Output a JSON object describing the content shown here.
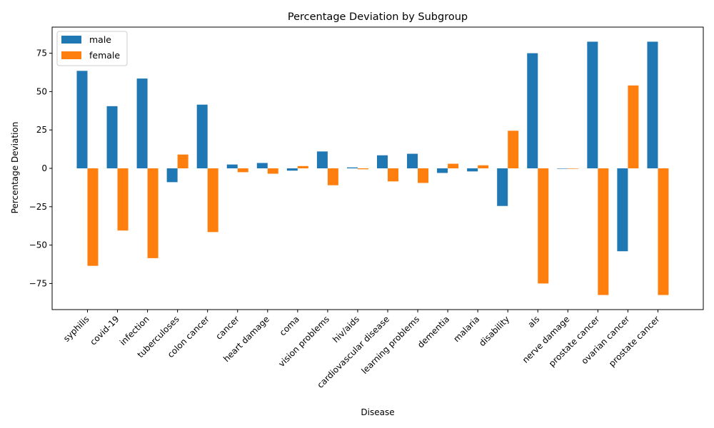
{
  "chart_data": {
    "type": "bar",
    "title": "Percentage Deviation by Subgroup",
    "xlabel": "Disease",
    "ylabel": "Percentage Deviation",
    "ylim": [
      -92,
      92
    ],
    "yticks": [
      -75,
      -50,
      -25,
      0,
      25,
      50,
      75
    ],
    "grid": false,
    "legend_position": "top-left",
    "categories": [
      "syphilis",
      "covid-19",
      "infection",
      "tuberculoses",
      "colon cancer",
      "cancer",
      "heart damage",
      "coma",
      "vision problems",
      "hiv/aids",
      "cardiovascular disease",
      "learning problems",
      "dementia",
      "malaria",
      "disability",
      "als",
      "nerve damage",
      "prostate cancer",
      "ovarian cancer",
      "prostate cancer"
    ],
    "series": [
      {
        "name": "male",
        "color": "#1f77b4",
        "values": [
          63.5,
          40.5,
          58.5,
          -9,
          41.5,
          2.5,
          3.5,
          -1.5,
          11,
          0.6,
          8.5,
          9.5,
          -3,
          -2,
          -24.5,
          75,
          0,
          82.5,
          -54,
          82.5
        ]
      },
      {
        "name": "female",
        "color": "#ff7f0e",
        "values": [
          -63.5,
          -40.5,
          -58.5,
          9,
          -41.5,
          -2.5,
          -3.5,
          1.5,
          -11,
          -0.6,
          -8.5,
          -9.5,
          3,
          2,
          24.5,
          -75,
          0,
          -82.5,
          54,
          -82.5
        ]
      }
    ]
  }
}
